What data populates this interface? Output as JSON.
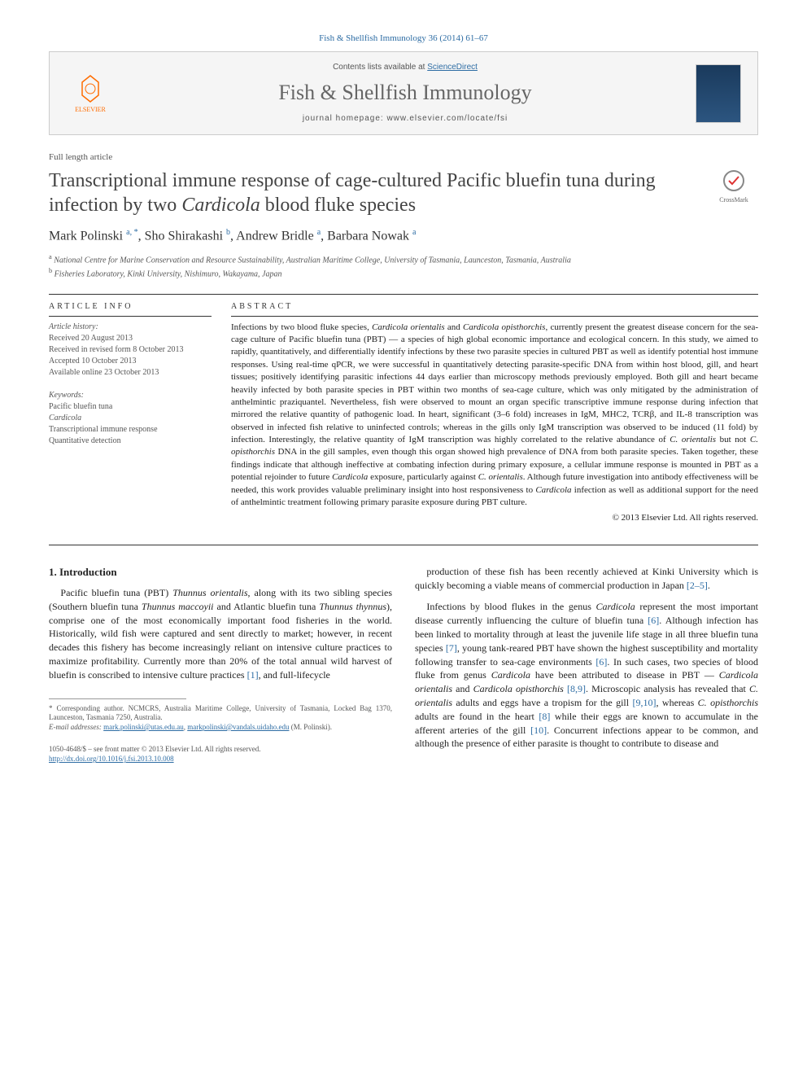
{
  "citation": "Fish & Shellfish Immunology 36 (2014) 61–67",
  "banner": {
    "publisher": "ELSEVIER",
    "contents_prefix": "Contents lists available at ",
    "contents_link": "ScienceDirect",
    "journal_name": "Fish & Shellfish Immunology",
    "homepage_label": "journal homepage: ",
    "homepage_url": "www.elsevier.com/locate/fsi"
  },
  "article_type": "Full length article",
  "title_html": "Transcriptional immune response of cage-cultured Pacific bluefin tuna during infection by two <em>Cardicola</em> blood fluke species",
  "crossmark_label": "CrossMark",
  "authors_html": "Mark Polinski <sup>a, *</sup>, Sho Shirakashi <sup>b</sup>, Andrew Bridle <sup>a</sup>, Barbara Nowak <sup>a</sup>",
  "affiliations": [
    {
      "sup": "a",
      "text": "National Centre for Marine Conservation and Resource Sustainability, Australian Maritime College, University of Tasmania, Launceston, Tasmania, Australia"
    },
    {
      "sup": "b",
      "text": "Fisheries Laboratory, Kinki University, Nishimuro, Wakayama, Japan"
    }
  ],
  "info": {
    "heading": "ARTICLE INFO",
    "history_label": "Article history:",
    "history": [
      "Received 20 August 2013",
      "Received in revised form 8 October 2013",
      "Accepted 10 October 2013",
      "Available online 23 October 2013"
    ],
    "keywords_label": "Keywords:",
    "keywords": [
      "Pacific bluefin tuna",
      "Cardicola",
      "Transcriptional immune response",
      "Quantitative detection"
    ]
  },
  "abstract": {
    "heading": "ABSTRACT",
    "text_html": "Infections by two blood fluke species, <em>Cardicola orientalis</em> and <em>Cardicola opisthorchis</em>, currently present the greatest disease concern for the sea-cage culture of Pacific bluefin tuna (PBT) — a species of high global economic importance and ecological concern. In this study, we aimed to rapidly, quantitatively, and differentially identify infections by these two parasite species in cultured PBT as well as identify potential host immune responses. Using real-time qPCR, we were successful in quantitatively detecting parasite-specific DNA from within host blood, gill, and heart tissues; positively identifying parasitic infections 44 days earlier than microscopy methods previously employed. Both gill and heart became heavily infected by both parasite species in PBT within two months of sea-cage culture, which was only mitigated by the administration of anthelmintic praziquantel. Nevertheless, fish were observed to mount an organ specific transcriptive immune response during infection that mirrored the relative quantity of pathogenic load. In heart, significant (3–6 fold) increases in IgM, MHC2, TCRβ, and IL-8 transcription was observed in infected fish relative to uninfected controls; whereas in the gills only IgM transcription was observed to be induced (11 fold) by infection. Interestingly, the relative quantity of IgM transcription was highly correlated to the relative abundance of <em>C. orientalis</em> but not <em>C. opisthorchis</em> DNA in the gill samples, even though this organ showed high prevalence of DNA from both parasite species. Taken together, these findings indicate that although ineffective at combating infection during primary exposure, a cellular immune response is mounted in PBT as a potential rejoinder to future <em>Cardicola</em> exposure, particularly against <em>C. orientalis</em>. Although future investigation into antibody effectiveness will be needed, this work provides valuable preliminary insight into host responsiveness to <em>Cardicola</em> infection as well as additional support for the need of anthelmintic treatment following primary parasite exposure during PBT culture.",
    "copyright": "© 2013 Elsevier Ltd. All rights reserved."
  },
  "body": {
    "section_number": "1.",
    "section_title": "Introduction",
    "col1_p1_html": "Pacific bluefin tuna (PBT) <em>Thunnus orientalis</em>, along with its two sibling species (Southern bluefin tuna <em>Thunnus maccoyii</em> and Atlantic bluefin tuna <em>Thunnus thynnus</em>), comprise one of the most economically important food fisheries in the world. Historically, wild fish were captured and sent directly to market; however, in recent decades this fishery has become increasingly reliant on intensive culture practices to maximize profitability. Currently more than 20% of the total annual wild harvest of bluefin is conscribed to intensive culture practices <span class=\"ref-link\">[1]</span>, and full-lifecycle",
    "col2_p1_html": "production of these fish has been recently achieved at Kinki University which is quickly becoming a viable means of commercial production in Japan <span class=\"ref-link\">[2–5]</span>.",
    "col2_p2_html": "Infections by blood flukes in the genus <em>Cardicola</em> represent the most important disease currently influencing the culture of bluefin tuna <span class=\"ref-link\">[6]</span>. Although infection has been linked to mortality through at least the juvenile life stage in all three bluefin tuna species <span class=\"ref-link\">[7]</span>, young tank-reared PBT have shown the highest susceptibility and mortality following transfer to sea-cage environments <span class=\"ref-link\">[6]</span>. In such cases, two species of blood fluke from genus <em>Cardicola</em> have been attributed to disease in PBT — <em>Cardicola orientalis</em> and <em>Cardicola opisthorchis</em> <span class=\"ref-link\">[8,9]</span>. Microscopic analysis has revealed that <em>C. orientalis</em> adults and eggs have a tropism for the gill <span class=\"ref-link\">[9,10]</span>, whereas <em>C. opisthorchis</em> adults are found in the heart <span class=\"ref-link\">[8]</span> while their eggs are known to accumulate in the afferent arteries of the gill <span class=\"ref-link\">[10]</span>. Concurrent infections appear to be common, and although the presence of either parasite is thought to contribute to disease and"
  },
  "footnotes": {
    "corresp_html": "* Corresponding author. NCMCRS, Australia Maritime College, University of Tasmania, Locked Bag 1370, Launceston, Tasmania 7250, Australia.",
    "email_label": "E-mail addresses:",
    "email1": "mark.polinski@utas.edu.au",
    "email2": "markpolinski@vandals.uidaho.edu",
    "email_suffix": "(M. Polinski)."
  },
  "footer": {
    "issn_line": "1050-4648/$ – see front matter © 2013 Elsevier Ltd. All rights reserved.",
    "doi": "http://dx.doi.org/10.1016/j.fsi.2013.10.008"
  },
  "colors": {
    "link": "#2e6da4",
    "orange": "#ff6c00",
    "text": "#222222",
    "banner_bg": "#f5f5f5"
  }
}
